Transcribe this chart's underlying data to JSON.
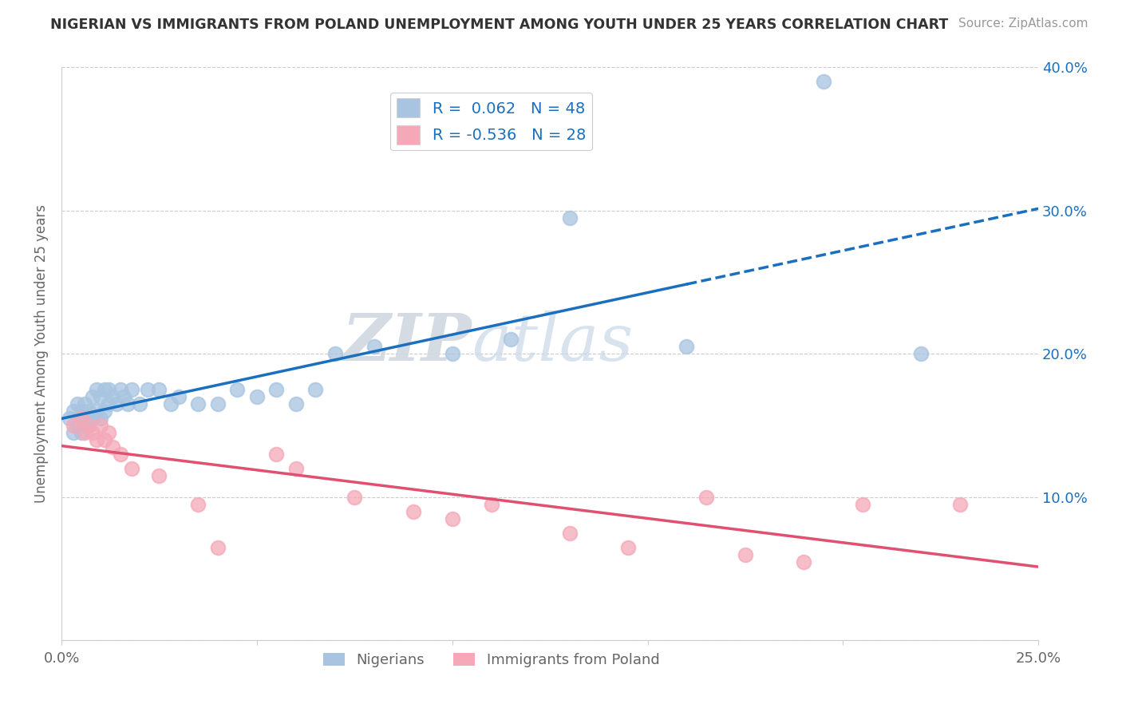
{
  "title": "NIGERIAN VS IMMIGRANTS FROM POLAND UNEMPLOYMENT AMONG YOUTH UNDER 25 YEARS CORRELATION CHART",
  "source": "Source: ZipAtlas.com",
  "ylabel": "Unemployment Among Youth under 25 years",
  "xmin": 0.0,
  "xmax": 0.25,
  "ymin": 0.0,
  "ymax": 0.4,
  "nigerians_x": [
    0.002,
    0.003,
    0.003,
    0.004,
    0.004,
    0.005,
    0.005,
    0.006,
    0.006,
    0.006,
    0.007,
    0.007,
    0.008,
    0.008,
    0.009,
    0.009,
    0.01,
    0.01,
    0.011,
    0.011,
    0.012,
    0.012,
    0.013,
    0.014,
    0.015,
    0.016,
    0.017,
    0.018,
    0.02,
    0.022,
    0.025,
    0.028,
    0.03,
    0.035,
    0.04,
    0.045,
    0.05,
    0.055,
    0.06,
    0.065,
    0.07,
    0.08,
    0.1,
    0.115,
    0.13,
    0.16,
    0.195,
    0.22
  ],
  "nigerians_y": [
    0.155,
    0.145,
    0.16,
    0.15,
    0.165,
    0.145,
    0.16,
    0.15,
    0.155,
    0.165,
    0.15,
    0.16,
    0.155,
    0.17,
    0.16,
    0.175,
    0.155,
    0.17,
    0.16,
    0.175,
    0.165,
    0.175,
    0.17,
    0.165,
    0.175,
    0.17,
    0.165,
    0.175,
    0.165,
    0.175,
    0.175,
    0.165,
    0.17,
    0.165,
    0.165,
    0.175,
    0.17,
    0.175,
    0.165,
    0.175,
    0.2,
    0.205,
    0.2,
    0.21,
    0.295,
    0.205,
    0.39,
    0.2
  ],
  "poland_x": [
    0.003,
    0.005,
    0.006,
    0.007,
    0.008,
    0.009,
    0.01,
    0.011,
    0.012,
    0.013,
    0.015,
    0.018,
    0.025,
    0.035,
    0.04,
    0.055,
    0.06,
    0.075,
    0.09,
    0.1,
    0.11,
    0.13,
    0.145,
    0.165,
    0.175,
    0.19,
    0.205,
    0.23
  ],
  "poland_y": [
    0.15,
    0.155,
    0.145,
    0.15,
    0.145,
    0.14,
    0.15,
    0.14,
    0.145,
    0.135,
    0.13,
    0.12,
    0.115,
    0.095,
    0.065,
    0.13,
    0.12,
    0.1,
    0.09,
    0.085,
    0.095,
    0.075,
    0.065,
    0.1,
    0.06,
    0.055,
    0.095,
    0.095
  ],
  "nigerian_R": 0.062,
  "nigerian_N": 48,
  "poland_R": -0.536,
  "poland_N": 28,
  "nigerian_color": "#a8c4e0",
  "poland_color": "#f4a8b8",
  "nigerian_line_color": "#1a6fbf",
  "poland_line_color": "#e05070",
  "watermark_zip": "ZIP",
  "watermark_atlas": "atlas",
  "background_color": "#ffffff",
  "grid_color": "#cccccc",
  "nigerian_line_solid_end": 0.16
}
